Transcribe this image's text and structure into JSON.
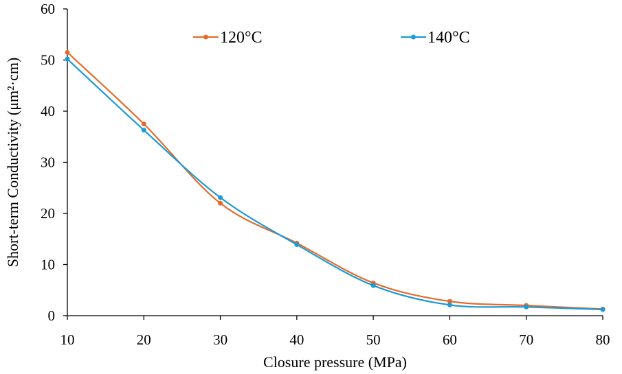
{
  "chart_data": {
    "type": "line",
    "title": "",
    "xlabel": "Closure pressure (MPa)",
    "ylabel": "Short-term Conductivity (μm²·cm)",
    "x": [
      10,
      20,
      30,
      40,
      50,
      60,
      70,
      80
    ],
    "xlim": [
      10,
      80
    ],
    "ylim": [
      0,
      60
    ],
    "xticks": [
      "10",
      "20",
      "30",
      "40",
      "50",
      "60",
      "70",
      "80"
    ],
    "yticks": [
      "0",
      "10",
      "20",
      "30",
      "40",
      "50",
      "60"
    ],
    "grid": false,
    "legend_position": "top",
    "series": [
      {
        "name": "120°C",
        "color": "#E36C2C",
        "values": [
          51.5,
          37.5,
          22.0,
          14.2,
          6.4,
          2.8,
          2.0,
          1.3
        ]
      },
      {
        "name": "140°C",
        "color": "#1B9AD6",
        "values": [
          50.2,
          36.3,
          23.1,
          13.9,
          5.9,
          2.1,
          1.7,
          1.2
        ]
      }
    ]
  }
}
